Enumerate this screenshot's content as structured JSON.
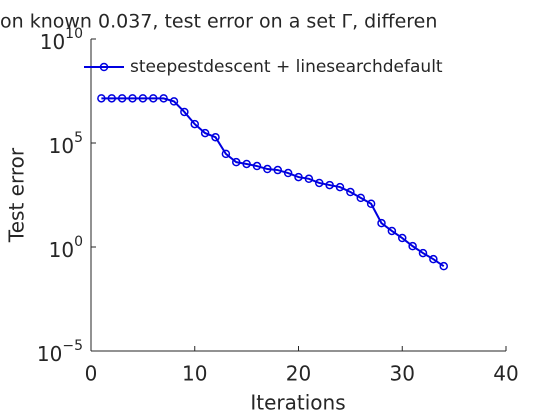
{
  "chart_data": {
    "type": "line",
    "title": "on known 0.037, test error on a set  Γ, differen",
    "xlabel": "Iterations",
    "ylabel": "Test error",
    "x": [
      1,
      2,
      3,
      4,
      5,
      6,
      7,
      8,
      9,
      10,
      11,
      12,
      13,
      14,
      15,
      16,
      17,
      18,
      19,
      20,
      21,
      22,
      23,
      24,
      25,
      26,
      27,
      28,
      29,
      30,
      31,
      32,
      33,
      34
    ],
    "series": [
      {
        "name": "steepestdescent + linesearchdefault",
        "color": "#0000e0",
        "values": [
          14000000.0,
          14000000.0,
          14000000.0,
          14000000.0,
          14000000.0,
          14000000.0,
          14000000.0,
          10000000.0,
          3100000.0,
          810000.0,
          300000.0,
          190000.0,
          30000.0,
          12000.0,
          9800,
          7800,
          5600,
          5000,
          3600,
          2300,
          1900,
          1200,
          950,
          760,
          440,
          230,
          120,
          14,
          5.9,
          2.7,
          1.1,
          0.51,
          0.26,
          0.12
        ]
      }
    ],
    "xlim": [
      0,
      40
    ],
    "xticks": [
      0,
      10,
      20,
      30,
      40
    ],
    "ylim": [
      1e-05,
      10000000000
    ],
    "yscale": "log",
    "yticks": [
      {
        "value": 1e-05,
        "label": "10",
        "power": "−5"
      },
      {
        "value": 1,
        "label": "10",
        "power": "0"
      },
      {
        "value": 100000,
        "label": "10",
        "power": "5"
      },
      {
        "value": 10000000000,
        "label": "10",
        "power": "10"
      }
    ],
    "legend": "upper left",
    "grid": false
  }
}
